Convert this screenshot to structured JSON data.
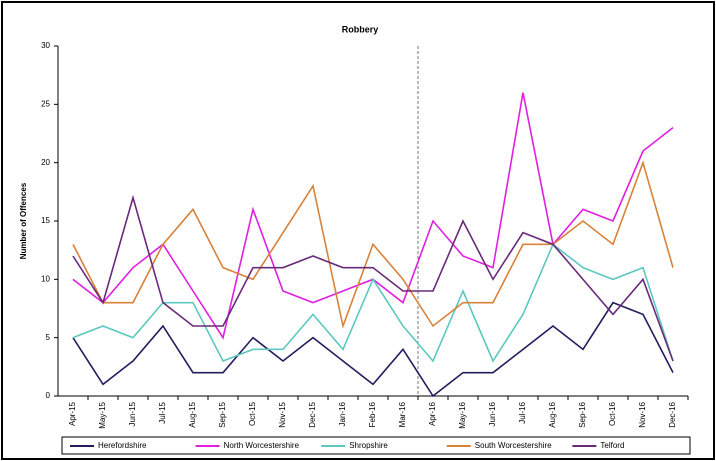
{
  "chart_data": {
    "type": "line",
    "title": "Robbery",
    "y_label": "Number of Offences",
    "categories": [
      "Apr-15",
      "May-15",
      "Jun-15",
      "Jul-15",
      "Aug-15",
      "Sep-15",
      "Oct-15",
      "Nov-15",
      "Dec-15",
      "Jan-16",
      "Feb-16",
      "Mar-16",
      "Apr-16",
      "May-16",
      "Jun-16",
      "Jul-16",
      "Aug-16",
      "Sep-16",
      "Oct-16",
      "Nov-16",
      "Dec-16"
    ],
    "series": [
      {
        "name": "Herefordshire",
        "color": "#231c5e",
        "values": [
          5,
          1,
          3,
          6,
          2,
          2,
          5,
          3,
          5,
          3,
          1,
          4,
          0,
          2,
          2,
          4,
          6,
          4,
          8,
          7,
          2
        ]
      },
      {
        "name": "North Worcestershire",
        "color": "#e020e0",
        "values": [
          10,
          8,
          11,
          13,
          9,
          5,
          16,
          9,
          8,
          9,
          10,
          8,
          15,
          12,
          11,
          26,
          13,
          16,
          15,
          21,
          23
        ]
      },
      {
        "name": "Shropshire",
        "color": "#5cc8c0",
        "values": [
          5,
          6,
          5,
          8,
          8,
          3,
          4,
          4,
          7,
          4,
          10,
          6,
          3,
          9,
          3,
          7,
          13,
          11,
          10,
          11,
          3
        ]
      },
      {
        "name": "South Worcestershire",
        "color": "#d8823a",
        "values": [
          13,
          8,
          8,
          13,
          16,
          11,
          10,
          14,
          18,
          6,
          13,
          10,
          6,
          8,
          8,
          13,
          13,
          15,
          13,
          20,
          11
        ]
      },
      {
        "name": "Telford",
        "color": "#6a2a7a",
        "values": [
          12,
          8,
          17,
          8,
          6,
          6,
          11,
          11,
          12,
          11,
          11,
          9,
          9,
          15,
          10,
          14,
          13,
          10,
          7,
          10,
          3
        ]
      }
    ],
    "ylim": [
      0,
      30
    ],
    "yticks": [
      0,
      5,
      10,
      15,
      20,
      25,
      30
    ],
    "legend": "bottom"
  }
}
